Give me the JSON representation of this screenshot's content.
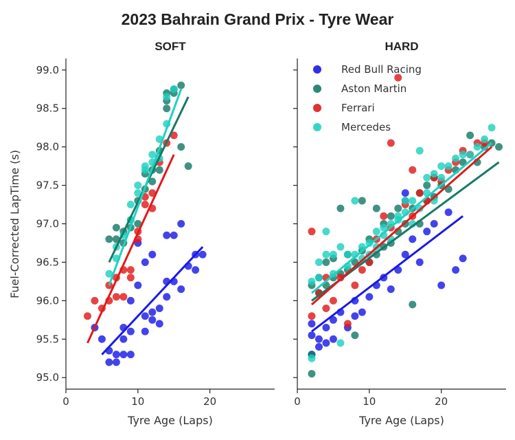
{
  "chart_data": {
    "type": "scatter",
    "title": "2023 Bahrain Grand Prix - Tyre Wear",
    "ylabel": "Fuel-Corrected LapTime (s)",
    "xlabel": "Tyre Age (Laps)",
    "ylim": [
      94.85,
      99.15
    ],
    "yticks": [
      95.0,
      95.5,
      96.0,
      96.5,
      97.0,
      97.5,
      98.0,
      98.5,
      99.0
    ],
    "ytick_labels": [
      "95.0",
      "95.5",
      "96.0",
      "96.5",
      "97.0",
      "97.5",
      "98.0",
      "98.5",
      "99.0"
    ],
    "legend_position": "top-right of HARD panel",
    "series": [
      {
        "name": "Red Bull Racing",
        "color": "#1a1ae6"
      },
      {
        "name": "Aston Martin",
        "color": "#167a68"
      },
      {
        "name": "Ferrari",
        "color": "#e01a1a"
      },
      {
        "name": "Mercedes",
        "color": "#1fd1c0"
      }
    ],
    "panels": [
      {
        "title": "SOFT",
        "xlim": [
          0,
          29
        ],
        "xticks": [
          0,
          10,
          20
        ],
        "xtick_labels": [
          "0",
          "10",
          "20"
        ],
        "fits": [
          {
            "series": 0,
            "x": [
              5,
              19
            ],
            "y": [
              95.3,
              96.7
            ]
          },
          {
            "series": 1,
            "x": [
              6,
              17
            ],
            "y": [
              96.5,
              98.65
            ]
          },
          {
            "series": 2,
            "x": [
              3,
              15
            ],
            "y": [
              95.45,
              97.9
            ]
          },
          {
            "series": 3,
            "x": [
              6,
              16
            ],
            "y": [
              96.2,
              98.75
            ]
          }
        ],
        "points": [
          {
            "series": 0,
            "x": [
              4,
              5,
              6,
              6,
              7,
              7,
              8,
              8,
              8,
              9,
              9,
              9,
              10,
              10,
              11,
              11,
              11,
              12,
              12,
              12,
              13,
              13,
              14,
              14,
              14,
              15,
              15,
              16,
              16,
              17,
              18,
              18,
              19
            ],
            "y": [
              95.65,
              95.5,
              95.2,
              95.35,
              95.2,
              95.3,
              95.3,
              95.5,
              95.65,
              95.3,
              95.6,
              96.0,
              96.2,
              96.75,
              95.6,
              95.8,
              96.5,
              95.75,
              95.85,
              96.6,
              95.7,
              95.9,
              96.05,
              96.25,
              96.85,
              96.25,
              96.85,
              96.15,
              97.0,
              96.45,
              96.4,
              96.6,
              96.6
            ]
          },
          {
            "series": 1,
            "x": [
              6,
              7,
              7,
              8,
              8,
              9,
              9,
              10,
              10,
              11,
              11,
              12,
              12,
              13,
              13,
              14,
              14,
              14,
              15,
              15,
              16,
              16,
              17
            ],
            "y": [
              96.8,
              96.95,
              96.8,
              96.75,
              96.9,
              97.05,
              96.95,
              97.0,
              97.3,
              97.45,
              97.65,
              97.55,
              97.7,
              97.7,
              97.95,
              98.5,
              98.6,
              98.7,
              98.7,
              98.75,
              98.8,
              98.0,
              97.75
            ]
          },
          {
            "series": 2,
            "x": [
              3,
              4,
              5,
              6,
              6,
              7,
              7,
              8,
              8,
              9,
              9,
              10,
              10,
              11,
              11,
              12,
              12,
              13,
              14,
              15
            ],
            "y": [
              95.8,
              96.0,
              95.9,
              96.0,
              96.2,
              96.3,
              96.05,
              96.4,
              96.05,
              96.3,
              96.4,
              96.9,
              96.8,
              97.25,
              97.35,
              97.2,
              97.4,
              97.8,
              98.05,
              98.15
            ]
          },
          {
            "series": 3,
            "x": [
              6,
              7,
              7,
              8,
              9,
              9,
              10,
              10,
              11,
              11,
              12,
              12,
              13,
              13,
              14,
              14,
              15
            ],
            "y": [
              96.35,
              96.55,
              96.7,
              96.85,
              97.05,
              97.25,
              97.4,
              97.5,
              97.7,
              97.75,
              97.8,
              97.9,
              97.85,
              98.1,
              98.3,
              98.65,
              98.75
            ]
          }
        ]
      },
      {
        "title": "HARD",
        "xlim": [
          0,
          29
        ],
        "xticks": [
          0,
          10,
          20
        ],
        "xtick_labels": [
          "0",
          "10",
          "20"
        ],
        "fits": [
          {
            "series": 0,
            "x": [
              2,
              23
            ],
            "y": [
              95.6,
              97.1
            ]
          },
          {
            "series": 1,
            "x": [
              2,
              28
            ],
            "y": [
              96.0,
              97.8
            ]
          },
          {
            "series": 2,
            "x": [
              2,
              27
            ],
            "y": [
              95.95,
              98.0
            ]
          },
          {
            "series": 3,
            "x": [
              2,
              27
            ],
            "y": [
              96.1,
              98.05
            ]
          }
        ],
        "points": [
          {
            "series": 0,
            "x": [
              2,
              2,
              2,
              3,
              3,
              4,
              4,
              5,
              5,
              6,
              7,
              8,
              8,
              9,
              10,
              11,
              12,
              13,
              14,
              15,
              15,
              16,
              17,
              18,
              19,
              20,
              21,
              22,
              23
            ],
            "y": [
              95.3,
              95.55,
              95.7,
              95.4,
              95.5,
              95.45,
              95.65,
              95.5,
              95.75,
              95.85,
              95.65,
              95.8,
              96.0,
              95.85,
              96.05,
              96.2,
              96.3,
              96.15,
              96.4,
              96.6,
              97.4,
              96.8,
              96.5,
              96.9,
              97.0,
              96.2,
              97.15,
              96.4,
              96.55
            ]
          },
          {
            "series": 1,
            "x": [
              2,
              2,
              2,
              3,
              3,
              4,
              4,
              5,
              5,
              6,
              6,
              7,
              7,
              8,
              8,
              9,
              9,
              10,
              10,
              11,
              11,
              12,
              12,
              13,
              13,
              14,
              14,
              15,
              15,
              16,
              16,
              17,
              17,
              18,
              18,
              19,
              19,
              20,
              21,
              22,
              23,
              24,
              25,
              26,
              27,
              28
            ],
            "y": [
              95.05,
              95.3,
              96.2,
              96.3,
              96.1,
              96.2,
              96.5,
              96.3,
              96.55,
              96.35,
              97.2,
              96.4,
              96.6,
              95.55,
              96.5,
              96.65,
              97.3,
              96.5,
              96.8,
              96.6,
              97.2,
              96.7,
              97.0,
              96.75,
              97.1,
              96.9,
              97.2,
              97.0,
              97.3,
              95.95,
              97.2,
              97.4,
              97.0,
              97.3,
              97.5,
              97.6,
              97.35,
              97.5,
              97.45,
              97.7,
              97.8,
              98.15,
              97.8,
              98.0,
              98.05,
              98.0
            ]
          },
          {
            "series": 2,
            "x": [
              2,
              2,
              3,
              4,
              4,
              5,
              6,
              7,
              8,
              9,
              10,
              11,
              12,
              13,
              13,
              14,
              15,
              16,
              16,
              17,
              18,
              19,
              20,
              21,
              22,
              23,
              24,
              25,
              26
            ],
            "y": [
              96.9,
              95.8,
              96.1,
              95.9,
              96.3,
              96.0,
              96.3,
              95.7,
              96.2,
              96.4,
              96.5,
              96.8,
              97.1,
              98.05,
              96.95,
              98.9,
              97.25,
              97.7,
              97.1,
              97.4,
              97.3,
              97.6,
              97.55,
              97.7,
              97.8,
              97.95,
              97.9,
              98.05,
              98.05
            ]
          },
          {
            "series": 3,
            "x": [
              2,
              2,
              3,
              3,
              4,
              4,
              5,
              5,
              6,
              6,
              7,
              7,
              8,
              8,
              9,
              9,
              10,
              10,
              11,
              11,
              12,
              12,
              13,
              13,
              14,
              14,
              15,
              15,
              16,
              16,
              17,
              17,
              18,
              18,
              19,
              19,
              20,
              20,
              21,
              22,
              23,
              24,
              25,
              26,
              27
            ],
            "y": [
              95.25,
              96.25,
              96.3,
              96.5,
              96.6,
              96.9,
              96.35,
              96.6,
              95.45,
              96.7,
              96.45,
              96.6,
              96.6,
              97.3,
              96.7,
              96.55,
              96.6,
              96.75,
              96.9,
              96.7,
              96.95,
              96.85,
              97.0,
              96.8,
              97.05,
              97.1,
              97.3,
              97.15,
              97.3,
              97.0,
              97.95,
              97.2,
              97.4,
              97.6,
              97.65,
              97.3,
              97.6,
              97.75,
              97.75,
              97.85,
              97.9,
              97.9,
              98.0,
              98.1,
              98.25
            ]
          }
        ]
      }
    ]
  }
}
